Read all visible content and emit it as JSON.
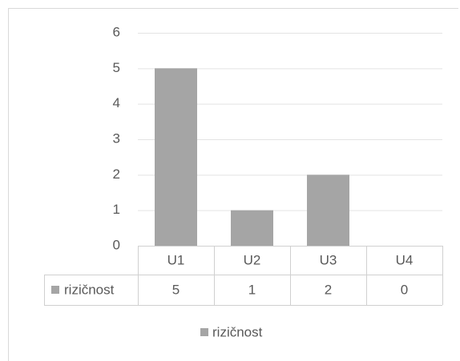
{
  "chart_data": {
    "type": "bar",
    "categories": [
      "U1",
      "U2",
      "U3",
      "U4"
    ],
    "series": [
      {
        "name": "rizičnost",
        "color": "#a5a5a5",
        "values": [
          5,
          1,
          2,
          0
        ]
      }
    ],
    "ylim": [
      0,
      6
    ],
    "yticks": [
      0,
      1,
      2,
      3,
      4,
      5,
      6
    ],
    "grid": true,
    "data_table": true,
    "legend": "bottom"
  }
}
